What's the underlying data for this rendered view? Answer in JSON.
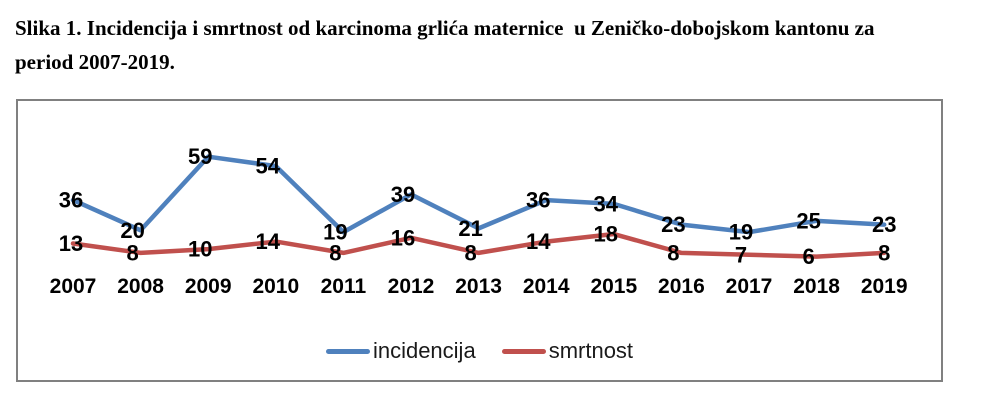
{
  "figure_caption": {
    "lines": [
      "Slika 1. Incidencija i smrtnost od karcinoma grlića maternice  u Zeničko-dobojskom kantonu za",
      "period 2007-2019."
    ]
  },
  "chart_data": {
    "type": "line",
    "title": "",
    "xlabel": "",
    "ylabel": "",
    "categories": [
      "2007",
      "2008",
      "2009",
      "2010",
      "2011",
      "2012",
      "2013",
      "2014",
      "2015",
      "2016",
      "2017",
      "2018",
      "2019"
    ],
    "series": [
      {
        "name": "incidencija",
        "color": "#4F81BD",
        "values": [
          36,
          20,
          59,
          54,
          19,
          39,
          21,
          36,
          34,
          23,
          19,
          25,
          23
        ]
      },
      {
        "name": "smrtnost",
        "color": "#C0504D",
        "values": [
          13,
          8,
          10,
          14,
          8,
          16,
          8,
          14,
          18,
          8,
          7,
          6,
          8
        ]
      }
    ],
    "ylim": [
      0,
      75
    ],
    "grid": false,
    "axes_shown": false,
    "data_labels": true,
    "data_label_color": "#000000",
    "category_label_color": "#000000",
    "legend_position": "bottom-inside",
    "border_color": "#808080"
  }
}
